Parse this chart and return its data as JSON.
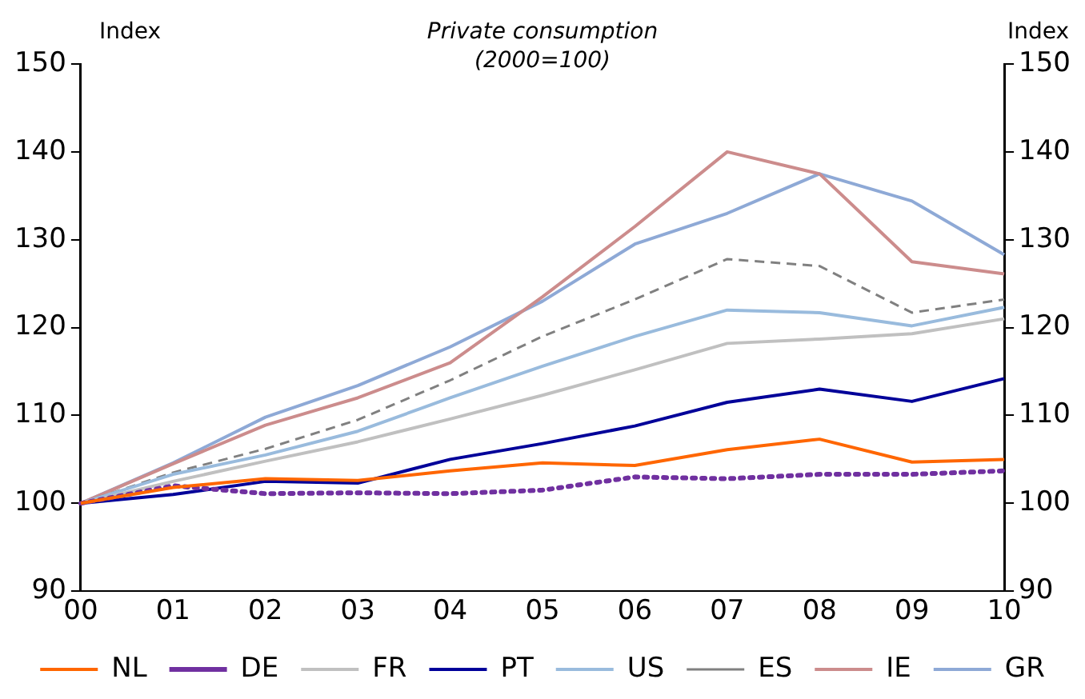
{
  "chart_data": {
    "type": "line",
    "title": "Private consumption",
    "subtitle": "(2000=100)",
    "ylabel": "Index",
    "y2label": "Index",
    "categories": [
      "00",
      "01",
      "02",
      "03",
      "04",
      "05",
      "06",
      "07",
      "08",
      "09",
      "10"
    ],
    "series": [
      {
        "name": "NL",
        "color": "#ff6600",
        "line_style": "solid",
        "values": [
          100,
          101.8,
          102.8,
          102.6,
          103.7,
          104.6,
          104.3,
          106.1,
          107.3,
          104.7,
          105
        ]
      },
      {
        "name": "DE",
        "color": "#7030a0",
        "line_style": "dotted",
        "values": [
          100,
          102,
          101.1,
          101.2,
          101.1,
          101.5,
          103,
          102.8,
          103.3,
          103.3,
          103.7
        ]
      },
      {
        "name": "FR",
        "color": "#c0c0c0",
        "line_style": "solid",
        "values": [
          100,
          102.5,
          104.8,
          107,
          109.6,
          112.3,
          115.2,
          118.2,
          118.7,
          119.3,
          121
        ]
      },
      {
        "name": "PT",
        "color": "#000099",
        "line_style": "solid",
        "values": [
          100,
          101,
          102.5,
          102.3,
          105,
          106.8,
          108.8,
          111.5,
          113,
          111.6,
          114.2
        ]
      },
      {
        "name": "US",
        "color": "#99bbdd",
        "line_style": "solid",
        "values": [
          100,
          103.3,
          105.5,
          108.2,
          112,
          115.6,
          119,
          122,
          121.7,
          120.2,
          122.3
        ]
      },
      {
        "name": "ES",
        "color": "#808080",
        "line_style": "dashed",
        "values": [
          100,
          103.5,
          106.2,
          109.5,
          114,
          119,
          123.2,
          127.8,
          127,
          121.7,
          123.2
        ]
      },
      {
        "name": "IE",
        "color": "#cc8c8c",
        "line_style": "solid",
        "values": [
          100,
          104.5,
          108.9,
          112,
          116,
          123.5,
          131.5,
          140,
          137.5,
          127.5,
          126.1
        ]
      },
      {
        "name": "GR",
        "color": "#8ea9d6",
        "line_style": "solid",
        "values": [
          100,
          104.6,
          109.8,
          113.4,
          117.8,
          123,
          129.5,
          133,
          137.5,
          134.4,
          128.3
        ]
      }
    ],
    "ylim": [
      90,
      150
    ],
    "yticks": [
      90,
      100,
      110,
      120,
      130,
      140,
      150
    ],
    "y2lim": [
      90,
      150
    ],
    "y2ticks": [
      90,
      100,
      110,
      120,
      130,
      140,
      150
    ],
    "grid": false,
    "legend": "bottom",
    "marker": "none"
  }
}
